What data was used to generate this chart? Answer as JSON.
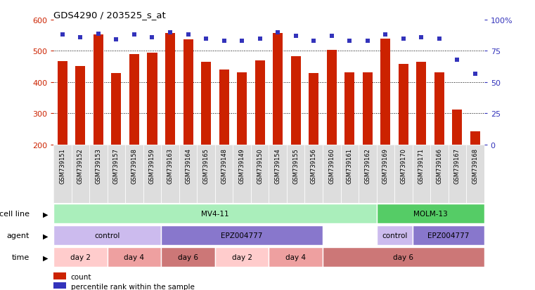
{
  "title": "GDS4290 / 203525_s_at",
  "samples": [
    "GSM739151",
    "GSM739152",
    "GSM739153",
    "GSM739157",
    "GSM739158",
    "GSM739159",
    "GSM739163",
    "GSM739164",
    "GSM739165",
    "GSM739148",
    "GSM739149",
    "GSM739150",
    "GSM739154",
    "GSM739155",
    "GSM739156",
    "GSM739160",
    "GSM739161",
    "GSM739162",
    "GSM739169",
    "GSM739170",
    "GSM739171",
    "GSM739166",
    "GSM739167",
    "GSM739168"
  ],
  "counts": [
    467,
    452,
    553,
    430,
    490,
    495,
    557,
    537,
    465,
    440,
    432,
    470,
    557,
    483,
    430,
    503,
    432,
    432,
    539,
    459,
    465,
    432,
    313,
    242
  ],
  "percentile_ranks": [
    88,
    86,
    89,
    84,
    88,
    86,
    90,
    88,
    85,
    83,
    83,
    85,
    90,
    87,
    83,
    87,
    83,
    83,
    88,
    85,
    86,
    85,
    68,
    57
  ],
  "y_min": 200,
  "y_max": 600,
  "y_ticks": [
    200,
    300,
    400,
    500,
    600
  ],
  "y_right_ticks": [
    0,
    25,
    50,
    75,
    100
  ],
  "bar_color": "#CC2200",
  "dot_color": "#3333BB",
  "grid_color": "#000000",
  "bg_color": "#FFFFFF",
  "tick_bg_color": "#DDDDDD",
  "cell_line_segments": [
    {
      "label": "MV4-11",
      "start": 0,
      "end": 18,
      "color": "#AAEEBB"
    },
    {
      "label": "MOLM-13",
      "start": 18,
      "end": 24,
      "color": "#55CC66"
    }
  ],
  "agent_segments": [
    {
      "label": "control",
      "start": 0,
      "end": 6,
      "color": "#CCBBEE"
    },
    {
      "label": "EPZ004777",
      "start": 6,
      "end": 15,
      "color": "#8877CC"
    },
    {
      "label": "control",
      "start": 18,
      "end": 20,
      "color": "#CCBBEE"
    },
    {
      "label": "EPZ004777",
      "start": 20,
      "end": 24,
      "color": "#8877CC"
    }
  ],
  "time_segments": [
    {
      "label": "day 2",
      "start": 0,
      "end": 3,
      "color": "#FFCCCC"
    },
    {
      "label": "day 4",
      "start": 3,
      "end": 6,
      "color": "#EEA0A0"
    },
    {
      "label": "day 6",
      "start": 6,
      "end": 9,
      "color": "#CC7777"
    },
    {
      "label": "day 2",
      "start": 9,
      "end": 12,
      "color": "#FFCCCC"
    },
    {
      "label": "day 4",
      "start": 12,
      "end": 15,
      "color": "#EEA0A0"
    },
    {
      "label": "day 6",
      "start": 15,
      "end": 24,
      "color": "#CC7777"
    }
  ],
  "left_label_color": "#CC2200",
  "right_label_color": "#3333BB",
  "row_labels": [
    "cell line",
    "agent",
    "time"
  ],
  "legend_items": [
    {
      "label": "count",
      "color": "#CC2200"
    },
    {
      "label": "percentile rank within the sample",
      "color": "#3333BB"
    }
  ]
}
